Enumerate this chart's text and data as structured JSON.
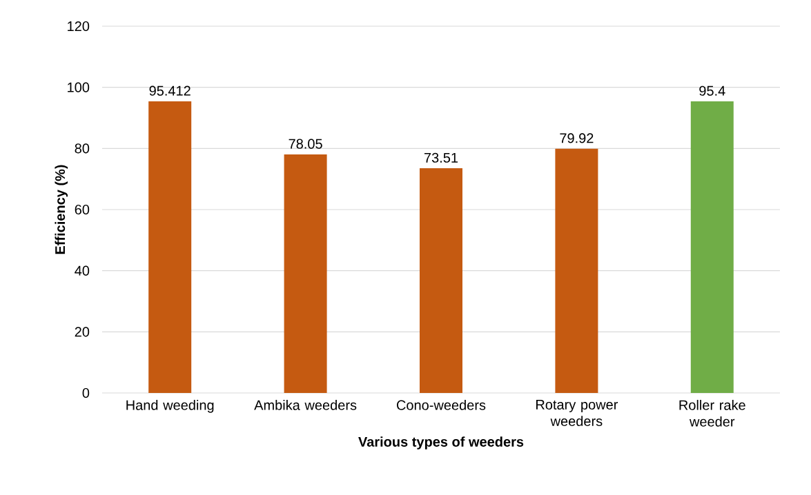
{
  "chart_data": {
    "type": "bar",
    "xlabel": "Various types of weeders",
    "ylabel": "Efficiency (%)",
    "categories": [
      "Hand weeding",
      "Ambika weeders",
      "Cono-weeders",
      "Rotary power weeders",
      "Roller rake weeder"
    ],
    "values": [
      95.412,
      78.05,
      73.51,
      79.92,
      95.4
    ],
    "colors": [
      "#c55a11",
      "#c55a11",
      "#c55a11",
      "#c55a11",
      "#70ad47"
    ],
    "ylim": [
      0,
      120
    ],
    "yticks": [
      0,
      20,
      40,
      60,
      80,
      100,
      120
    ],
    "grid": "y",
    "data_labels": true
  }
}
